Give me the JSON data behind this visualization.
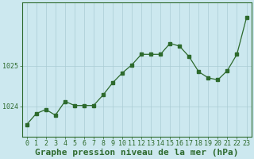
{
  "x": [
    0,
    1,
    2,
    3,
    4,
    5,
    6,
    7,
    8,
    9,
    10,
    11,
    12,
    13,
    14,
    15,
    16,
    17,
    18,
    19,
    20,
    21,
    22,
    23
  ],
  "y": [
    1023.55,
    1023.82,
    1023.92,
    1023.78,
    1024.12,
    1024.02,
    1024.02,
    1024.02,
    1024.28,
    1024.58,
    1024.82,
    1025.02,
    1025.28,
    1025.28,
    1025.28,
    1025.55,
    1025.48,
    1025.22,
    1024.85,
    1024.7,
    1024.65,
    1024.88,
    1025.28,
    1026.18
  ],
  "line_color": "#2d6a2d",
  "marker": "s",
  "marker_size": 2.5,
  "bg_color": "#cce8ef",
  "grid_color": "#aaccd4",
  "axis_color": "#2d6a2d",
  "tick_color": "#2d6a2d",
  "title": "Graphe pression niveau de la mer (hPa)",
  "title_color": "#2d6a2d",
  "yticks": [
    1024,
    1025
  ],
  "xtick_labels": [
    "0",
    "1",
    "2",
    "3",
    "4",
    "5",
    "6",
    "7",
    "8",
    "9",
    "10",
    "11",
    "12",
    "13",
    "14",
    "15",
    "16",
    "17",
    "18",
    "19",
    "20",
    "21",
    "22",
    "23"
  ],
  "ylim": [
    1023.25,
    1026.55
  ],
  "xlim": [
    -0.5,
    23.5
  ],
  "title_fontsize": 8.0,
  "tick_fontsize": 6.0,
  "linewidth": 0.9
}
